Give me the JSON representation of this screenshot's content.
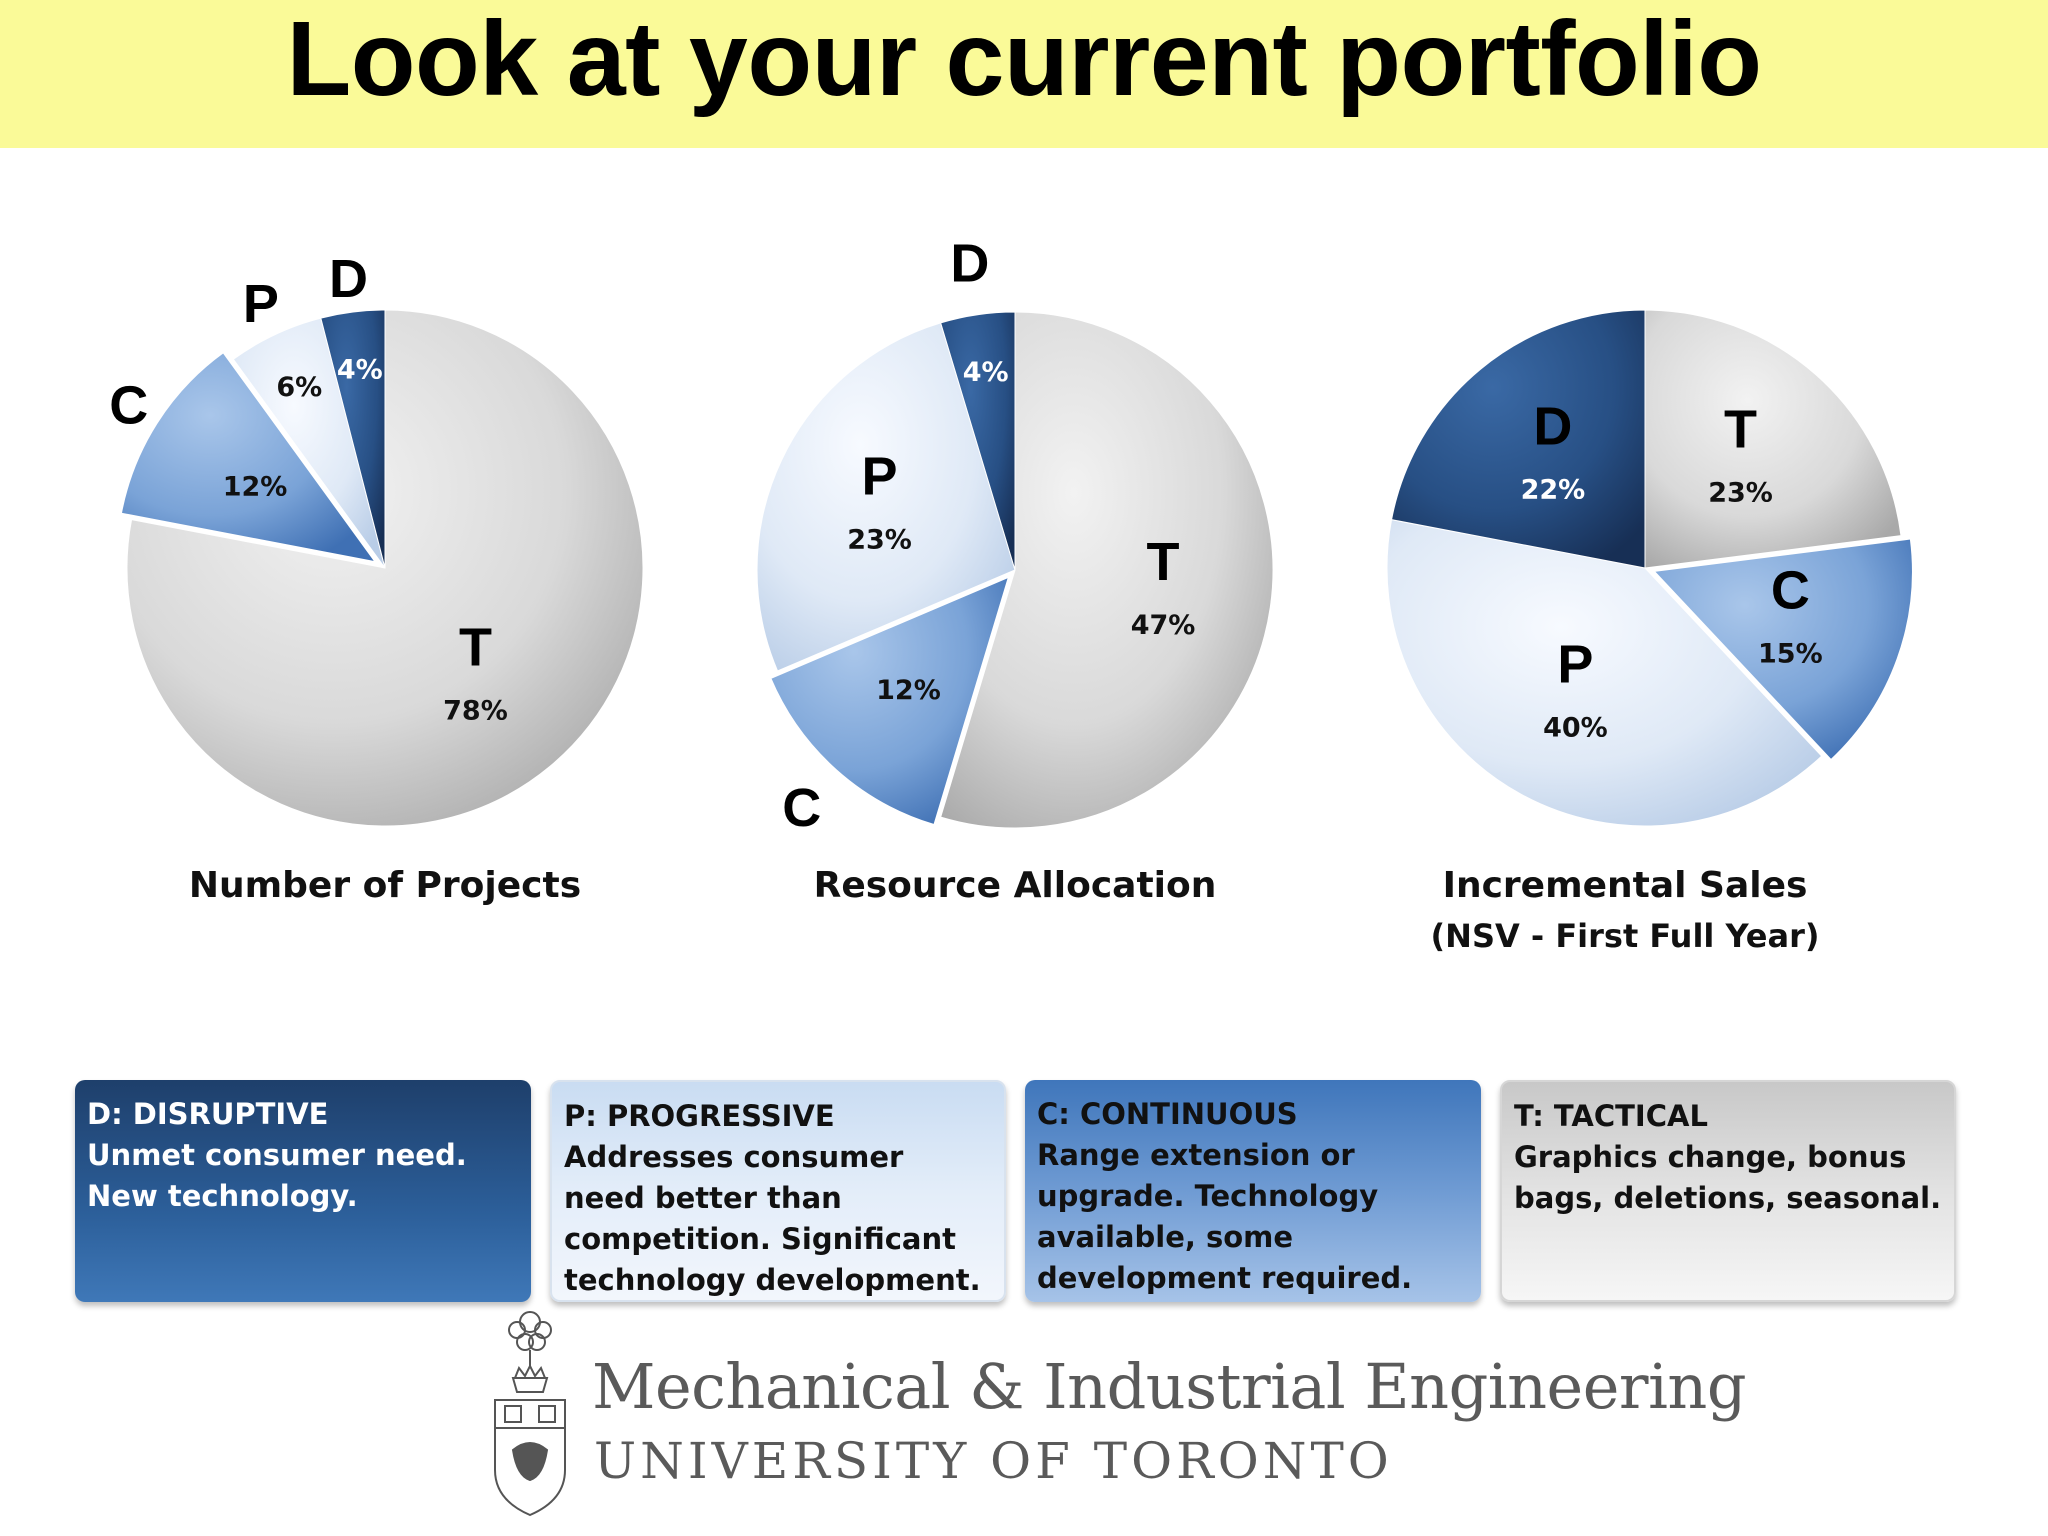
{
  "title": "Look at your current portfolio",
  "colors": {
    "title_bg": "#fafa98",
    "D": "#2a5285",
    "P": "#dce8f6",
    "C": "#6b97cf",
    "T": "#d2d2d2"
  },
  "chart_data": [
    {
      "type": "pie",
      "title": "Number of Projects",
      "slices": [
        {
          "label": "T",
          "value": 78,
          "value_label": "78%"
        },
        {
          "label": "C",
          "value": 12,
          "value_label": "12%"
        },
        {
          "label": "P",
          "value": 6,
          "value_label": "6%"
        },
        {
          "label": "D",
          "value": 4,
          "value_label": "4%"
        }
      ]
    },
    {
      "type": "pie",
      "title": "Resource Allocation",
      "slices": [
        {
          "label": "T",
          "value": 47,
          "value_label": "47%"
        },
        {
          "label": "C",
          "value": 12,
          "value_label": "12%"
        },
        {
          "label": "P",
          "value": 23,
          "value_label": "23%"
        },
        {
          "label": "D",
          "value": 4,
          "value_label": "4%"
        }
      ]
    },
    {
      "type": "pie",
      "title": "Incremental Sales",
      "subtitle": "(NSV - First Full Year)",
      "slices": [
        {
          "label": "T",
          "value": 23,
          "value_label": "23%"
        },
        {
          "label": "C",
          "value": 15,
          "value_label": "15%"
        },
        {
          "label": "P",
          "value": 40,
          "value_label": "40%"
        },
        {
          "label": "D",
          "value": 22,
          "value_label": "22%"
        }
      ]
    }
  ],
  "legend": [
    {
      "key": "D",
      "title": "D: DISRUPTIVE",
      "text": "Unmet consumer need. New technology."
    },
    {
      "key": "P",
      "title": "P: PROGRESSIVE",
      "text": "Addresses consumer need better than competition. Significant technology development."
    },
    {
      "key": "C",
      "title": "C: CONTINUOUS",
      "text": "Range extension or upgrade. Technology available, some development required."
    },
    {
      "key": "T",
      "title": "T: TACTICAL",
      "text": "Graphics change, bonus bags, deletions, seasonal."
    }
  ],
  "logo": {
    "line1": "Mechanical & Industrial Engineering",
    "line2": "UNIVERSITY OF TORONTO"
  }
}
